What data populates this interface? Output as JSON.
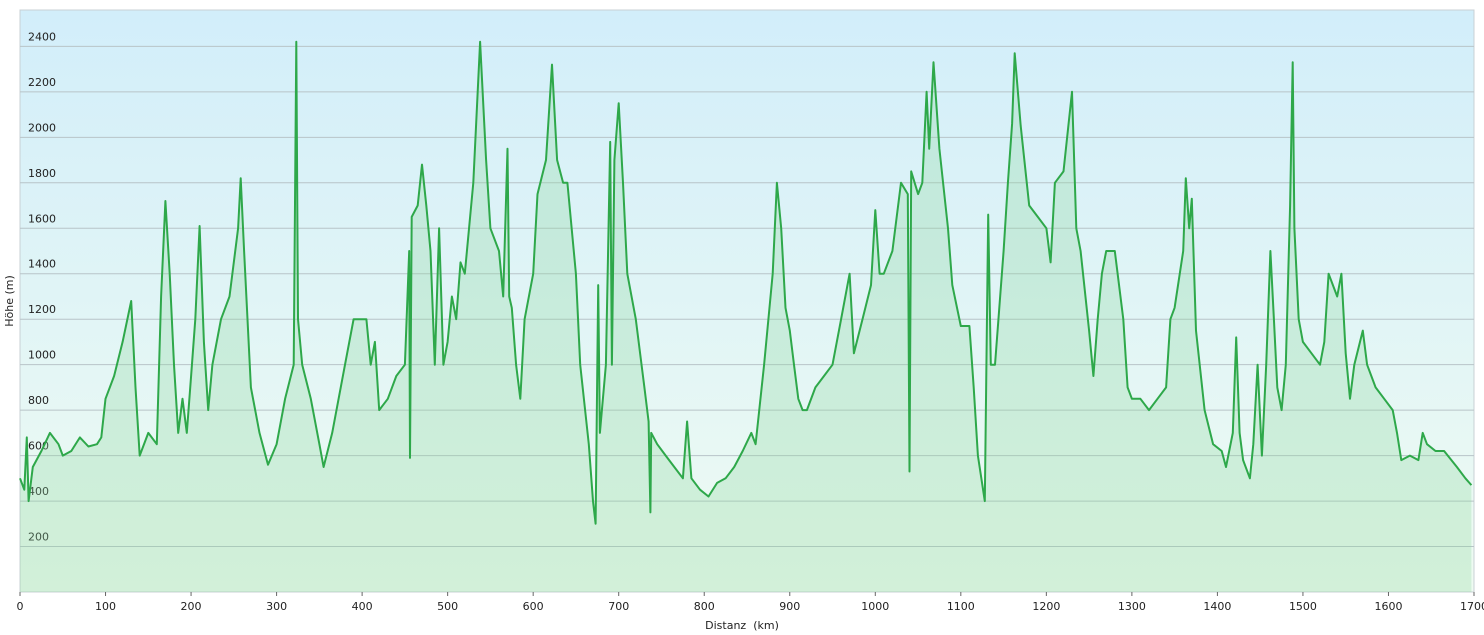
{
  "chart_data": {
    "type": "line",
    "area": true,
    "x_label": "Distanz  (km)",
    "y_label": "Höhe (m)",
    "color": "#2ea84a",
    "fill": "#8fd6a0",
    "xlim": [
      0,
      1700
    ],
    "ylim": [
      0,
      2560
    ],
    "xticks": [
      0,
      100,
      200,
      300,
      400,
      500,
      600,
      700,
      800,
      900,
      1000,
      1100,
      1200,
      1300,
      1400,
      1500,
      1600,
      1700
    ],
    "yticks": [
      200,
      400,
      600,
      800,
      1000,
      1200,
      1400,
      1600,
      1800,
      2000,
      2200,
      2400
    ],
    "grid": true,
    "x": [
      0,
      5,
      8,
      10,
      15,
      25,
      35,
      45,
      50,
      60,
      70,
      80,
      90,
      95,
      100,
      110,
      120,
      130,
      135,
      140,
      150,
      160,
      165,
      170,
      175,
      180,
      185,
      190,
      195,
      200,
      205,
      210,
      215,
      220,
      225,
      235,
      245,
      255,
      258,
      262,
      270,
      280,
      290,
      300,
      310,
      320,
      323,
      325,
      330,
      340,
      350,
      355,
      365,
      380,
      390,
      405,
      410,
      415,
      420,
      430,
      440,
      450,
      455,
      456,
      458,
      465,
      470,
      475,
      480,
      485,
      490,
      495,
      500,
      505,
      510,
      515,
      520,
      530,
      538,
      545,
      550,
      560,
      565,
      570,
      572,
      575,
      580,
      585,
      590,
      600,
      605,
      615,
      622,
      628,
      635,
      640,
      650,
      655,
      665,
      670,
      673,
      676,
      678,
      685,
      690,
      692,
      695,
      700,
      705,
      710,
      720,
      730,
      735,
      737,
      738,
      745,
      755,
      765,
      775,
      780,
      785,
      795,
      805,
      815,
      825,
      835,
      845,
      855,
      860,
      870,
      880,
      885,
      890,
      895,
      900,
      905,
      910,
      915,
      920,
      930,
      940,
      950,
      960,
      970,
      975,
      985,
      995,
      1000,
      1005,
      1010,
      1020,
      1030,
      1038,
      1040,
      1042,
      1050,
      1055,
      1060,
      1063,
      1068,
      1075,
      1085,
      1090,
      1100,
      1110,
      1115,
      1120,
      1128,
      1132,
      1135,
      1140,
      1150,
      1155,
      1160,
      1163,
      1170,
      1180,
      1190,
      1200,
      1205,
      1210,
      1220,
      1230,
      1235,
      1240,
      1250,
      1255,
      1260,
      1265,
      1270,
      1280,
      1290,
      1295,
      1300,
      1310,
      1320,
      1330,
      1340,
      1345,
      1350,
      1360,
      1363,
      1367,
      1370,
      1375,
      1385,
      1395,
      1405,
      1410,
      1418,
      1422,
      1426,
      1430,
      1438,
      1442,
      1447,
      1452,
      1457,
      1462,
      1466,
      1470,
      1475,
      1480,
      1485,
      1488,
      1490,
      1495,
      1500,
      1510,
      1520,
      1525,
      1530,
      1535,
      1540,
      1545,
      1550,
      1555,
      1560,
      1570,
      1575,
      1585,
      1595,
      1605,
      1610,
      1615,
      1625,
      1635,
      1640,
      1645,
      1655,
      1665,
      1680,
      1690,
      1697
    ],
    "values": [
      500,
      450,
      680,
      400,
      550,
      620,
      700,
      650,
      600,
      620,
      680,
      640,
      650,
      680,
      850,
      950,
      1100,
      1280,
      900,
      600,
      700,
      650,
      1300,
      1720,
      1400,
      1000,
      700,
      850,
      700,
      950,
      1200,
      1610,
      1100,
      800,
      1000,
      1200,
      1300,
      1600,
      1820,
      1500,
      900,
      700,
      560,
      650,
      850,
      1000,
      2420,
      1200,
      1000,
      850,
      650,
      550,
      700,
      1000,
      1200,
      1200,
      1000,
      1100,
      800,
      850,
      950,
      1000,
      1500,
      590,
      1650,
      1700,
      1880,
      1700,
      1500,
      1000,
      1600,
      1000,
      1100,
      1300,
      1200,
      1450,
      1400,
      1800,
      2420,
      1900,
      1600,
      1500,
      1300,
      1950,
      1300,
      1250,
      1000,
      850,
      1200,
      1400,
      1750,
      1900,
      2320,
      1900,
      1800,
      1800,
      1400,
      1000,
      650,
      400,
      300,
      1350,
      700,
      1000,
      1980,
      1000,
      1900,
      2150,
      1800,
      1400,
      1200,
      900,
      750,
      350,
      700,
      650,
      600,
      550,
      500,
      750,
      500,
      450,
      420,
      480,
      500,
      550,
      620,
      700,
      650,
      1000,
      1400,
      1800,
      1600,
      1250,
      1150,
      1000,
      850,
      800,
      800,
      900,
      950,
      1000,
      1200,
      1400,
      1050,
      1200,
      1350,
      1680,
      1400,
      1400,
      1500,
      1800,
      1750,
      530,
      1850,
      1750,
      1800,
      2200,
      1950,
      2330,
      1950,
      1600,
      1350,
      1170,
      1170,
      900,
      600,
      400,
      1660,
      1000,
      1000,
      1500,
      1800,
      2060,
      2370,
      2050,
      1700,
      1650,
      1600,
      1450,
      1800,
      1850,
      2200,
      1600,
      1500,
      1150,
      950,
      1200,
      1400,
      1500,
      1500,
      1200,
      900,
      850,
      850,
      800,
      850,
      900,
      1200,
      1250,
      1500,
      1820,
      1600,
      1730,
      1150,
      800,
      650,
      620,
      550,
      700,
      1120,
      700,
      580,
      500,
      650,
      1000,
      600,
      1000,
      1500,
      1200,
      900,
      800,
      1000,
      1700,
      2330,
      1600,
      1200,
      1100,
      1050,
      1000,
      1100,
      1400,
      1350,
      1300,
      1400,
      1050,
      850,
      1000,
      1150,
      1000,
      900,
      850,
      800,
      700,
      580,
      600,
      580,
      700,
      650,
      620,
      620,
      550,
      500,
      470
    ]
  }
}
